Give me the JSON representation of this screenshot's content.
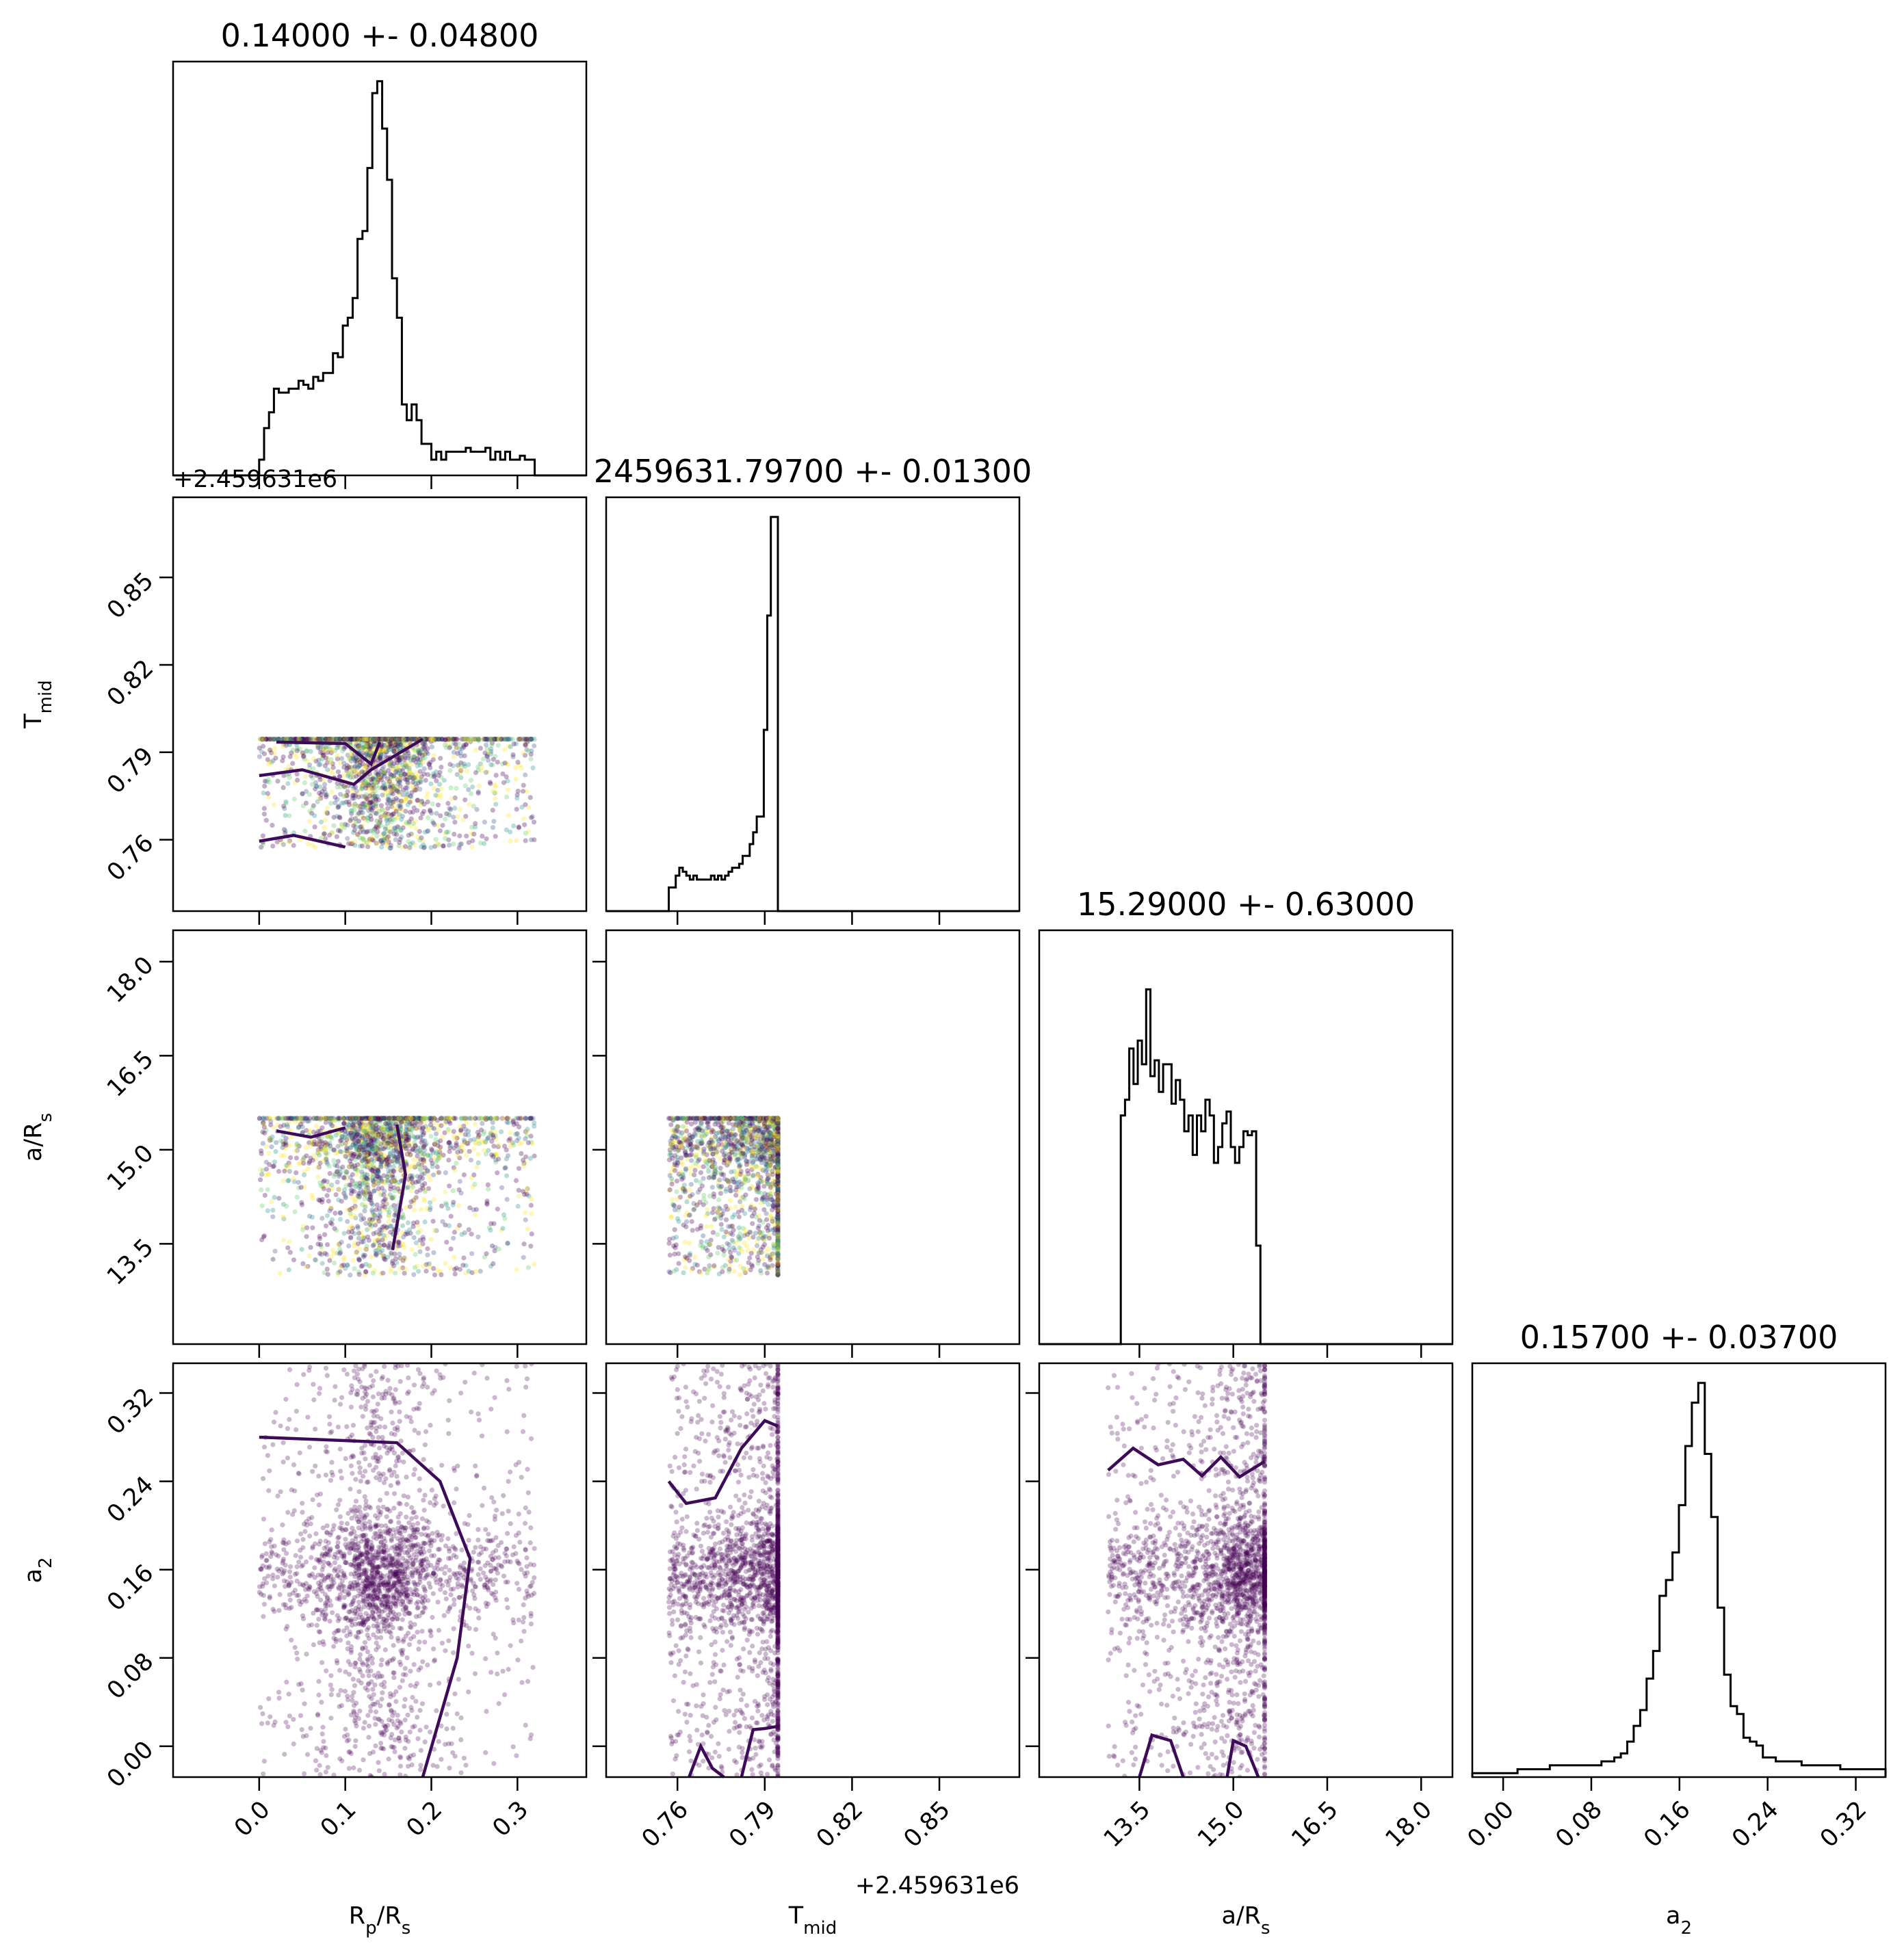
{
  "chart_data": {
    "type": "corner",
    "parameters": [
      {
        "key": "rp",
        "label": "R<sub>p</sub>/R<sub>s</sub>",
        "title": "0.14000 +- 0.04800",
        "range": [
          -0.1,
          0.38
        ],
        "ticks": [
          0.0,
          0.1,
          0.2,
          0.3
        ],
        "tick_labels": [
          "0.0",
          "0.1",
          "0.2",
          "0.3"
        ],
        "mean": 0.14,
        "sigma": 0.048,
        "sample_range": [
          0.0,
          0.32
        ]
      },
      {
        "key": "tmid",
        "label": "T<sub>mid</sub>",
        "title": "2459631.79700 +- 0.01300",
        "range": [
          0.7355,
          0.8775
        ],
        "ticks": [
          0.76,
          0.79,
          0.82,
          0.85
        ],
        "tick_labels": [
          "0.76",
          "0.79",
          "0.82",
          "0.85"
        ],
        "offset_label": "+2.459631e6",
        "mean": 0.797,
        "sigma": 0.013,
        "sample_range": [
          0.757,
          0.7945
        ]
      },
      {
        "key": "ars",
        "label": "a/R<sub>s</sub>",
        "title": "15.29000 +- 0.63000",
        "range": [
          11.9,
          18.5
        ],
        "ticks": [
          13.5,
          15.0,
          16.5,
          18.0
        ],
        "tick_labels": [
          "13.5",
          "15.0",
          "16.5",
          "18.0"
        ],
        "mean": 15.29,
        "sigma": 0.63,
        "sample_range": [
          13.0,
          15.5
        ]
      },
      {
        "key": "a2",
        "label": "a<sub>2</sub>",
        "title": "0.15700 +- 0.03700",
        "range": [
          -0.028,
          0.347
        ],
        "ticks": [
          0.0,
          0.08,
          0.16,
          0.24,
          0.32
        ],
        "tick_labels": [
          "0.00",
          "0.08",
          "0.16",
          "0.24",
          "0.32"
        ],
        "mean": 0.157,
        "sigma": 0.037,
        "sample_range": [
          -0.028,
          0.347
        ]
      }
    ],
    "histograms": {
      "rp": {
        "bins": [
          0.0,
          0.32
        ],
        "counts": [
          4,
          12,
          16,
          22,
          21,
          21,
          22,
          22,
          24,
          23,
          22,
          25,
          24,
          26,
          26,
          31,
          30,
          38,
          40,
          45,
          60,
          62,
          78,
          97,
          100,
          88,
          75,
          50,
          40,
          18,
          14,
          18,
          14,
          8,
          8,
          4,
          6,
          4,
          6,
          6,
          6,
          6,
          7,
          6,
          6,
          6,
          7,
          4,
          6,
          4,
          6,
          4,
          4,
          5,
          4,
          4
        ]
      },
      "tmid": {
        "bins": [
          0.757,
          0.7945
        ],
        "counts": [
          6,
          6,
          9,
          11,
          10,
          9,
          8,
          9,
          8,
          8,
          8,
          8,
          9,
          8,
          9,
          8,
          9,
          10,
          11,
          11,
          12,
          14,
          14,
          17,
          20,
          24,
          24,
          46,
          75,
          100,
          100
        ]
      },
      "ars": {
        "bins": [
          13.0,
          15.5
        ],
        "counts": [
          0,
          0,
          0,
          58,
          62,
          75,
          66,
          77,
          71,
          90,
          68,
          72,
          64,
          71,
          71,
          61,
          67,
          62,
          54,
          58,
          48,
          58,
          54,
          62,
          58,
          46,
          50,
          56,
          59,
          50,
          46,
          50,
          54,
          53,
          54,
          25,
          0
        ]
      },
      "a2": {
        "bins": [
          -0.028,
          0.347
        ],
        "counts": [
          1,
          1,
          1,
          1,
          1,
          1,
          1,
          2,
          2,
          2,
          2,
          2,
          3,
          3,
          3,
          3,
          3,
          3,
          3,
          3,
          4,
          4,
          5,
          6,
          9,
          13,
          17,
          25,
          32,
          46,
          50,
          57,
          69,
          84,
          95,
          100,
          82,
          66,
          43,
          26,
          18,
          16,
          10,
          9,
          8,
          5,
          5,
          4,
          4,
          4,
          4,
          3,
          3,
          3,
          3,
          3,
          3,
          2,
          2,
          2,
          2,
          2,
          2,
          2
        ]
      }
    },
    "hist_ylim_top": 105,
    "scatter_color_map": "viridis",
    "contour_color": "#3d0b57",
    "text": {
      "xlabel_rp": "R",
      "xlabel_rp_sub": "p",
      "xlabel_rp_tail": "/R",
      "xlabel_rp_sub2": "s",
      "xlabel_tmid": "T",
      "xlabel_tmid_sub": "mid",
      "xlabel_ars": "a/R",
      "xlabel_ars_sub": "s",
      "xlabel_a2": "a",
      "xlabel_a2_sub": "2",
      "offset_left_panel": "+2.459631e6",
      "offset_bottom_panel": "+2.459631e6"
    }
  }
}
